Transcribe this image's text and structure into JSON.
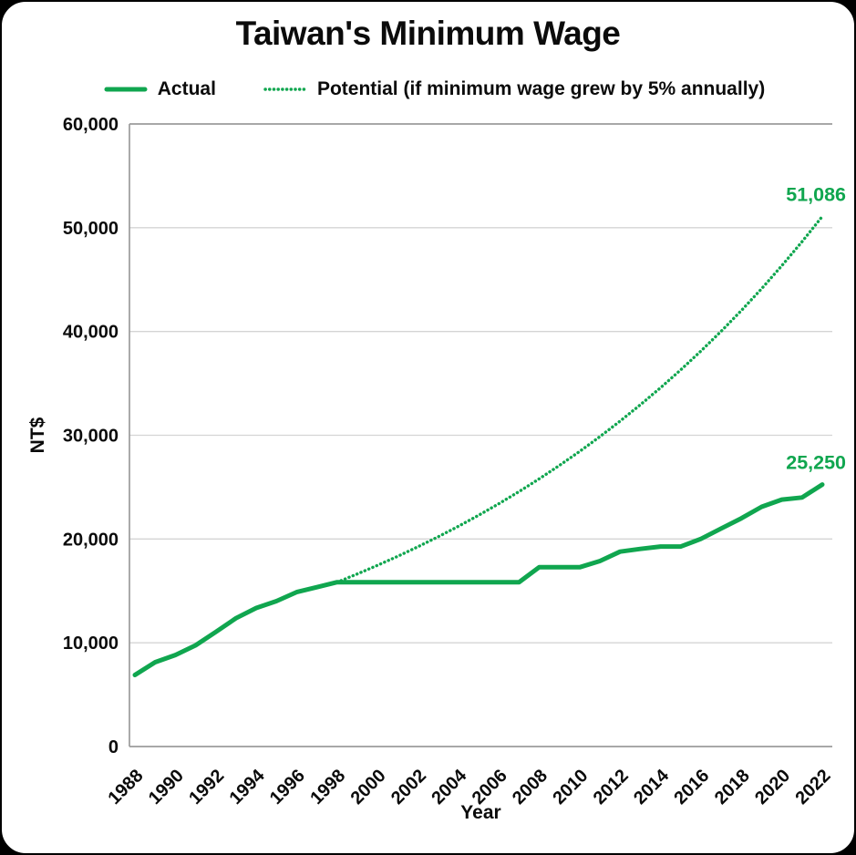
{
  "title": "Taiwan's Minimum Wage",
  "colors": {
    "green": "#10a64f",
    "grid": "#d4d4d4",
    "axis": "#9b9b9b",
    "text": "#0b0b0b"
  },
  "legend": [
    {
      "label": "Actual",
      "style": "solid"
    },
    {
      "label": "Potential (if minimum wage grew by 5% annually)",
      "style": "dotted"
    }
  ],
  "chart_data": {
    "type": "line",
    "title": "Taiwan's Minimum Wage",
    "xlabel": "Year",
    "ylabel": "NT$",
    "xlim": [
      1988,
      2022
    ],
    "ylim": [
      0,
      60000
    ],
    "grid": true,
    "legend_position": "top",
    "yticks": [
      0,
      10000,
      20000,
      30000,
      40000,
      50000,
      60000
    ],
    "ytick_labels": [
      "0",
      "10,000",
      "20,000",
      "30,000",
      "40,000",
      "50,000",
      "60,000"
    ],
    "xticks": [
      1988,
      1990,
      1992,
      1994,
      1996,
      1998,
      2000,
      2002,
      2004,
      2006,
      2008,
      2010,
      2012,
      2014,
      2016,
      2018,
      2020,
      2022
    ],
    "series": [
      {
        "name": "Actual",
        "style": "solid",
        "end_label": "25,250",
        "x": [
          1988,
          1989,
          1990,
          1991,
          1992,
          1993,
          1994,
          1995,
          1996,
          1997,
          1998,
          1999,
          2000,
          2001,
          2002,
          2003,
          2004,
          2005,
          2006,
          2007,
          2008,
          2009,
          2010,
          2011,
          2012,
          2013,
          2014,
          2015,
          2016,
          2017,
          2018,
          2019,
          2020,
          2021,
          2022
        ],
        "values": [
          6900,
          8130,
          8820,
          9750,
          11040,
          12365,
          13350,
          14010,
          14880,
          15360,
          15840,
          15840,
          15840,
          15840,
          15840,
          15840,
          15840,
          15840,
          15840,
          15840,
          17280,
          17280,
          17280,
          17880,
          18780,
          19047,
          19273,
          19273,
          20008,
          21009,
          22000,
          23100,
          23800,
          24000,
          25250
        ]
      },
      {
        "name": "Potential (if minimum wage grew by 5% annually)",
        "style": "dotted",
        "end_label": "51,086",
        "x": [
          1998,
          1999,
          2000,
          2001,
          2002,
          2003,
          2004,
          2005,
          2006,
          2007,
          2008,
          2009,
          2010,
          2011,
          2012,
          2013,
          2014,
          2015,
          2016,
          2017,
          2018,
          2019,
          2020,
          2021,
          2022
        ],
        "values": [
          15840,
          16632,
          17464,
          18337,
          19254,
          20216,
          21227,
          22288,
          23403,
          24573,
          25802,
          27092,
          28446,
          29869,
          31362,
          32930,
          34577,
          36306,
          38121,
          40027,
          42028,
          44130,
          46336,
          48653,
          51086
        ]
      }
    ]
  }
}
